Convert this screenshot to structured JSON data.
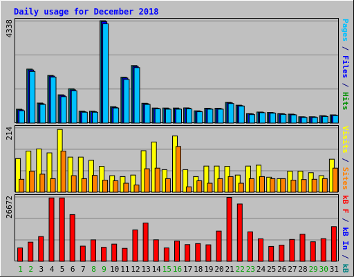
{
  "chart_data": {
    "type": "bar",
    "title": "Daily usage for December 2018",
    "categories": [
      "1",
      "2",
      "3",
      "4",
      "5",
      "6",
      "7",
      "8",
      "9",
      "10",
      "11",
      "12",
      "13",
      "14",
      "15",
      "16",
      "17",
      "18",
      "19",
      "20",
      "21",
      "22",
      "23",
      "24",
      "25",
      "26",
      "27",
      "28",
      "29",
      "30",
      "31"
    ],
    "weekend_days": [
      "1",
      "2",
      "8",
      "9",
      "15",
      "16",
      "22",
      "23",
      "29",
      "30"
    ],
    "panels": [
      {
        "name": "requests",
        "ymax_label": "4338",
        "ymax": 4338,
        "right_labels": [
          {
            "text": "Pages",
            "color": "#00c0ff"
          },
          {
            "text": " / ",
            "color": "#000080"
          },
          {
            "text": "Files",
            "color": "#0000ff"
          },
          {
            "text": " / ",
            "color": "#000080"
          },
          {
            "text": "Hits",
            "color": "#009000"
          }
        ],
        "series": [
          {
            "name": "Hits",
            "color": "#008080",
            "values": [
              590,
              2290,
              850,
              2020,
              1200,
              1455,
              505,
              505,
              4338,
              695,
              1945,
              2440,
              840,
              640,
              640,
              640,
              645,
              520,
              630,
              630,
              875,
              760,
              400,
              470,
              450,
              400,
              380,
              270,
              270,
              310,
              350
            ]
          },
          {
            "name": "Files",
            "color": "#0000ff",
            "values": [
              560,
              2250,
              820,
              1990,
              1170,
              1410,
              480,
              480,
              4300,
              665,
              1910,
              2400,
              820,
              620,
              610,
              610,
              630,
              500,
              610,
              610,
              860,
              740,
              390,
              460,
              440,
              390,
              370,
              260,
              260,
              300,
              340
            ]
          },
          {
            "name": "Pages",
            "color": "#00c0ff",
            "values": [
              520,
              2190,
              790,
              1950,
              1120,
              1370,
              460,
              460,
              4210,
              640,
              1850,
              2350,
              790,
              600,
              590,
              590,
              600,
              480,
              590,
              590,
              830,
              720,
              360,
              440,
              420,
              370,
              350,
              240,
              240,
              280,
              320
            ]
          }
        ]
      },
      {
        "name": "visitors",
        "ymax_label": "214",
        "ymax": 214,
        "right_labels": [
          {
            "text": "Visits",
            "color": "#ffff00"
          },
          {
            "text": " / ",
            "color": "#000080"
          },
          {
            "text": "Sites",
            "color": "#ff8000"
          }
        ],
        "series": [
          {
            "name": "Visits",
            "color": "#ffff00",
            "values": [
              112,
              137,
              144,
              131,
              209,
              117,
              117,
              106,
              86,
              55,
              52,
              57,
              138,
              167,
              75,
              187,
              75,
              52,
              87,
              87,
              86,
              57,
              87,
              90,
              50,
              45,
              70,
              70,
              65,
              55,
              110
            ]
          },
          {
            "name": "Sites",
            "color": "#ff8000",
            "values": [
              43,
              70,
              60,
              45,
              137,
              55,
              45,
              56,
              40,
              38,
              30,
              24,
              78,
              80,
              45,
              152,
              18,
              38,
              30,
              45,
              52,
              30,
              45,
              52,
              45,
              45,
              40,
              42,
              43,
              45,
              80
            ]
          }
        ]
      },
      {
        "name": "kbytes",
        "ymax_label": "26672",
        "ymax": 26672,
        "right_labels": [
          {
            "text": "kB F",
            "color": "#ff0000"
          },
          {
            "text": " / ",
            "color": "#000080"
          },
          {
            "text": "kB In",
            "color": "#0000ff"
          },
          {
            "text": " / ",
            "color": "#000080"
          },
          {
            "text": "kB Out",
            "color": "#008080"
          }
        ],
        "series": [
          {
            "name": "kB F",
            "color": "#ff0000",
            "values": [
              5550,
              7980,
              10290,
              26300,
              26300,
              19400,
              6300,
              8920,
              5820,
              7150,
              5400,
              13030,
              15890,
              8950,
              5550,
              8410,
              6940,
              7380,
              6860,
              12570,
              26520,
              23800,
              12250,
              9360,
              6190,
              6740,
              9080,
              11250,
              8130,
              9420,
              14410
            ]
          }
        ]
      }
    ]
  }
}
